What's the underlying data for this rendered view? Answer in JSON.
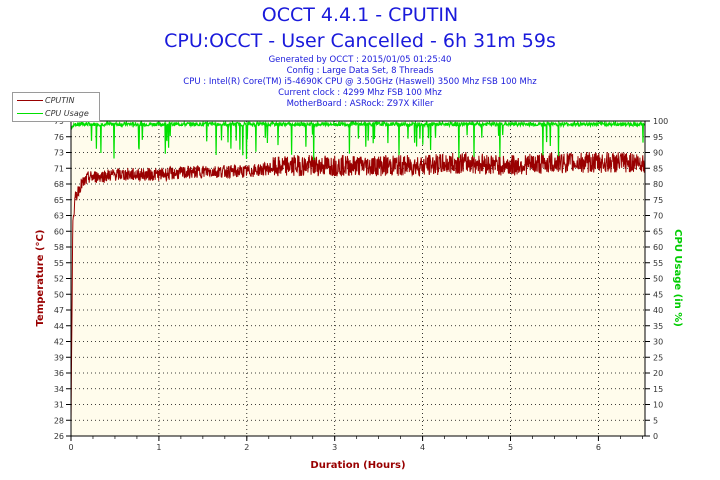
{
  "header": {
    "title": "OCCT 4.4.1 - CPUTIN",
    "subtitle": "CPU:OCCT - User Cancelled - 6h 31m 59s",
    "info_lines": [
      "Generated by OCCT : 2015/01/05 01:25:40",
      "Config : Large Data Set, 8 Threads",
      "CPU : Intel(R) Core(TM) i5-4690K CPU @ 3.50GHz (Haswell) 3500 Mhz FSB 100 Mhz",
      "Current clock : 4299 Mhz FSB 100 Mhz",
      "MotherBoard : ASRock: Z97X Killer"
    ]
  },
  "colors": {
    "temperature": "#990000",
    "cpu_usage": "#00e000",
    "title": "#1a1adb",
    "plot_bg": "#fffcec",
    "axis_label_left": "#990000",
    "axis_label_right": "#00cc00",
    "xlabel": "#990000"
  },
  "chart_data": {
    "type": "line",
    "xlabel": "Duration (Hours)",
    "ylabel_left": "Temperature (°C)",
    "ylabel_right": "CPU Usage (in %)",
    "xlim": [
      0,
      6.53
    ],
    "ylim_left": [
      26,
      79
    ],
    "ylim_right": [
      0,
      100
    ],
    "x_ticks": [
      "0",
      "1",
      "2",
      "3",
      "4",
      "5",
      "6"
    ],
    "y_ticks_left": [
      "26",
      "28",
      "31",
      "34",
      "36",
      "39",
      "42",
      "44",
      "47",
      "50",
      "52",
      "55",
      "58",
      "60",
      "63",
      "65",
      "68",
      "71",
      "73",
      "76",
      "79"
    ],
    "y_ticks_right": [
      "0",
      "5",
      "10",
      "15",
      "20",
      "25",
      "30",
      "35",
      "40",
      "45",
      "50",
      "55",
      "60",
      "65",
      "70",
      "75",
      "80",
      "85",
      "90",
      "95",
      "100"
    ],
    "grid": true,
    "legend_position": "top-left",
    "series": [
      {
        "name": "CPUTIN",
        "axis": "left",
        "x": [
          0,
          0.02,
          0.05,
          0.1,
          0.2,
          0.5,
          1.0,
          1.5,
          2.0,
          2.5,
          3.0,
          3.5,
          4.0,
          4.5,
          5.0,
          5.5,
          6.0,
          6.5
        ],
        "y": [
          28,
          62,
          66,
          68,
          69.5,
          70,
          70,
          70.5,
          70.5,
          71.5,
          71.5,
          71.5,
          71.5,
          72,
          71.5,
          72,
          72,
          72
        ]
      },
      {
        "name": "CPU Usage",
        "axis": "right",
        "x": [
          0,
          0.05,
          0.5,
          1.0,
          2.0,
          3.0,
          4.0,
          5.0,
          6.0,
          6.5
        ],
        "y": [
          98,
          99,
          99,
          99,
          99,
          99,
          99,
          99,
          99,
          99
        ]
      }
    ]
  }
}
